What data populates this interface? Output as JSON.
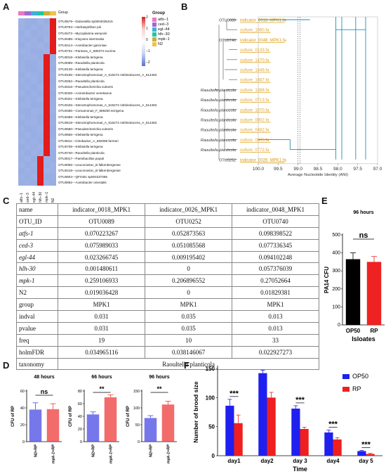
{
  "panels": {
    "a": "A",
    "b": "B",
    "c": "C",
    "d": "D",
    "e": "E",
    "f": "F"
  },
  "heatmap": {
    "legend_title": "Group",
    "groups": [
      {
        "name": "atfs−1",
        "color": "#ee77c0"
      },
      {
        "name": "ced−3",
        "color": "#9b6ad6"
      },
      {
        "name": "egl−44",
        "color": "#3fb1d6"
      },
      {
        "name": "hlh−30",
        "color": "#23c4a6"
      },
      {
        "name": "mpk−1",
        "color": "#c4b23a"
      },
      {
        "name": "N2",
        "color": "#f0c14b"
      }
    ],
    "group_bar_label": "Group",
    "scale_ticks": [
      "2",
      "1",
      "0",
      "−1",
      "−2"
    ],
    "columns": [
      "atfs−1",
      "ced−3",
      "egl−44",
      "hlh−30",
      "mpk−1",
      "N2"
    ],
    "rows": [
      "OTU0579---Dubosiella sp0004035415",
      "OTU0753---Herbaspirillum piri",
      "OTU0472---Mycoplasma wenyonii",
      "OTU0485---Kluyvera intermedia",
      "OTU0414---Acetobacter garciniae",
      "OTU0731---Pantoea_A_680372 eucrina",
      "OTU0018---Klebsiella terrigena",
      "OTU0089---Raoultella planticola",
      "OTU0139---Klebsiella terrigena",
      "OTU0165---Stenotrophomonas_A_615274 nitritireducens_A_614483",
      "OTU0252---Raoultella planticola",
      "OTU0316---Pseudescherichia vulneris",
      "OTU0328---Acinetobacter venetianus",
      "OTU0341---Klebsiella terrigena",
      "OTU0426---Stenotrophomonas_A_615274 nitritireducens_A_614483",
      "OTU0486---Comamonas_F_589250 terrigena",
      "OTU0488---Klebsiella terrigena",
      "OTU0519---Stenotrophomonas_A_615274 nitritireducens_A_614483",
      "OTU0560---Pseudescherichia vulneris",
      "OTU0566---Klebsiella terrigena",
      "OTU0611---Citrobacter_A_692098 farmeri",
      "OTU0739---Klebsiella terrigena",
      "OTU0740---Raoultella planticola",
      "OTU0017---Paenibacillus populi",
      "OTU0056---Leuconostoc_B falkenbergense",
      "OTU0418---Leuconostoc_B falkenbergense",
      "OTU0604---QFOI01 sp004337365",
      "OTU0692---Acetobacter orientalis"
    ],
    "values": [
      [
        -0.2,
        -0.5,
        -0.6,
        -0.2,
        -0.5,
        2.4
      ],
      [
        -0.3,
        -0.6,
        -0.3,
        -0.5,
        -0.2,
        2.4
      ],
      [
        -0.5,
        -0.2,
        -0.6,
        -0.4,
        -0.3,
        2.4
      ],
      [
        -0.4,
        -0.5,
        -0.3,
        -0.6,
        -0.2,
        2.4
      ],
      [
        -0.6,
        -0.3,
        -0.4,
        -0.2,
        -0.5,
        2.4
      ],
      [
        -0.3,
        -0.4,
        -0.6,
        -0.5,
        -0.2,
        2.4
      ],
      [
        -0.5,
        -0.4,
        -0.3,
        -0.5,
        2.4,
        -0.6
      ],
      [
        -0.4,
        -0.6,
        -0.5,
        -0.3,
        2.4,
        -0.4
      ],
      [
        -0.3,
        -0.5,
        -0.6,
        -0.4,
        2.4,
        -0.5
      ],
      [
        -0.6,
        -0.3,
        -0.4,
        -0.5,
        2.4,
        -0.3
      ],
      [
        -0.4,
        -0.5,
        -0.3,
        -0.6,
        2.4,
        -0.5
      ],
      [
        -0.5,
        -0.4,
        -0.6,
        -0.3,
        2.4,
        -0.4
      ],
      [
        -0.3,
        -0.6,
        -0.4,
        -0.5,
        2.4,
        -0.6
      ],
      [
        -0.6,
        -0.4,
        -0.5,
        -0.3,
        2.4,
        -0.5
      ],
      [
        -0.4,
        -0.3,
        -0.6,
        -0.5,
        2.4,
        -0.4
      ],
      [
        -0.5,
        -0.6,
        -0.3,
        -0.4,
        2.4,
        -0.3
      ],
      [
        -0.3,
        -0.5,
        -0.4,
        -0.6,
        2.4,
        -0.5
      ],
      [
        -0.6,
        -0.4,
        -0.3,
        -0.5,
        2.4,
        -0.4
      ],
      [
        -0.4,
        -0.6,
        -0.5,
        -0.3,
        2.4,
        -0.6
      ],
      [
        -0.5,
        -0.3,
        -0.6,
        -0.4,
        2.4,
        -0.5
      ],
      [
        -0.3,
        -0.5,
        -0.4,
        -0.6,
        2.4,
        -0.3
      ],
      [
        -0.6,
        -0.4,
        -0.5,
        -0.3,
        2.4,
        -0.4
      ],
      [
        -0.4,
        -0.6,
        -0.3,
        -0.5,
        2.4,
        -0.5
      ],
      [
        -0.5,
        -0.3,
        -0.6,
        2.4,
        -0.4,
        -0.5
      ],
      [
        -0.3,
        -0.6,
        -0.4,
        2.4,
        -0.5,
        -0.3
      ],
      [
        -0.6,
        -0.4,
        -0.5,
        2.4,
        -0.3,
        -0.4
      ],
      [
        -0.4,
        -0.5,
        -0.3,
        2.4,
        -0.6,
        -0.5
      ],
      [
        -0.5,
        -0.4,
        -0.6,
        2.4,
        -0.3,
        -0.6
      ]
    ]
  },
  "tree": {
    "leaves": [
      {
        "label": "indicator_0018_MPK1.fa",
        "pre": "OTU0089",
        "style": "hl"
      },
      {
        "label": "culture_1060.fa",
        "pre": "",
        "style": "c"
      },
      {
        "label": "indicator_0048_MPK1.fa",
        "pre": "OTU0740",
        "style": "hl"
      },
      {
        "label": "culture_0133.fa",
        "pre": "",
        "style": "c"
      },
      {
        "label": "culture_1470.fa",
        "pre": "",
        "style": "c"
      },
      {
        "label": "culture_1449.fa",
        "pre": "",
        "style": "c"
      },
      {
        "label": "culture_1687.fa",
        "pre": "",
        "style": "c"
      },
      {
        "label": "culture_1388.fa",
        "pre": "Raoultella planticola",
        "style": "c"
      },
      {
        "label": "culture_0713.fa",
        "pre": "Raoultella planticola",
        "style": "c"
      },
      {
        "label": "culture_1070.fa",
        "pre": "Raoultella planticola",
        "style": "c"
      },
      {
        "label": "culture_0802.fa",
        "pre": "Raoultella planticola",
        "style": "c"
      },
      {
        "label": "culture_0482.fa",
        "pre": "Raoultella planticola",
        "style": "c"
      },
      {
        "label": "culture_0805.fa",
        "pre": "Raoultella planticola",
        "style": "c"
      },
      {
        "label": "culture_0772.fa",
        "pre": "Raoultella planticola",
        "style": "c"
      },
      {
        "label": "indicator_0026_MPK1.fa",
        "pre": "OTU0252",
        "style": "hl"
      }
    ],
    "axis_ticks": [
      "100.0",
      "99.5",
      "99.0",
      "98.5",
      "98.0",
      "97.5",
      "97.0"
    ],
    "axis_label": "Average Nucleotide Identity (ANI)"
  },
  "table": {
    "rows": [
      {
        "c": [
          "name",
          "indicator_0018_MPK1",
          "indicator_0026_MPK1",
          "indicator_0048_MPK1"
        ],
        "it": false
      },
      {
        "c": [
          "OTU_ID",
          "OTU0089",
          "OTU0252",
          "OTU0740"
        ],
        "it": false
      },
      {
        "c": [
          "atfs-1",
          "0.070223267",
          "0.052873563",
          "0.098398522"
        ],
        "it": true
      },
      {
        "c": [
          "ced-3",
          "0.075989033",
          "0.051085568",
          "0.077336345"
        ],
        "it": true
      },
      {
        "c": [
          "egl-44",
          "0.023266745",
          "0.009195402",
          "0.094102248"
        ],
        "it": true
      },
      {
        "c": [
          "hlh-30",
          "0.001480611",
          "0",
          "0.057376039"
        ],
        "it": true
      },
      {
        "c": [
          "mpk-1",
          "0.259106933",
          "0.206896552",
          "0.27052664"
        ],
        "it": true
      },
      {
        "c": [
          "N2",
          "0.019036428",
          "0",
          "0.01829381"
        ],
        "it": false
      },
      {
        "c": [
          "group",
          "MPK1",
          "MPK1",
          "MPK1"
        ],
        "it": false
      },
      {
        "c": [
          "indval",
          "0.031",
          "0.035",
          "0.013"
        ],
        "it": false
      },
      {
        "c": [
          "pvalue",
          "0.031",
          "0.035",
          "0.013"
        ],
        "it": false
      },
      {
        "c": [
          "freq",
          "19",
          "10",
          "33"
        ],
        "it": false
      },
      {
        "c": [
          "holmFDR",
          "0.034965116",
          "0.038146067",
          "0.022927273"
        ],
        "it": false
      }
    ],
    "taxonomy_label": "taxonomy",
    "taxonomy_value": "Raoultella planticola"
  },
  "chart_data": [
    {
      "id": "D1",
      "type": "bar",
      "title": "48 hours",
      "categories": [
        "N2+RP",
        "mpk-1+RP"
      ],
      "values": [
        38,
        38.5
      ],
      "errors": [
        8,
        6.5
      ],
      "ylabel": "CFU of RP",
      "ylim": [
        0,
        60
      ],
      "yticks": [
        0,
        20,
        40,
        60
      ],
      "colors": [
        "#4a4ae6",
        "#ee3b3b"
      ],
      "sig": "ns"
    },
    {
      "id": "D2",
      "type": "bar",
      "title": "66 hours",
      "categories": [
        "N2+RP",
        "mpk-1+RP"
      ],
      "values": [
        43,
        70
      ],
      "errors": [
        4,
        4
      ],
      "ylabel": "CFU of RP",
      "ylim": [
        0,
        80
      ],
      "yticks": [
        0,
        20,
        40,
        60,
        80
      ],
      "colors": [
        "#4a4ae6",
        "#ee3b3b"
      ],
      "sig": "**"
    },
    {
      "id": "D3",
      "type": "bar",
      "title": "96 hours",
      "categories": [
        "N2+RP",
        "mpk-1+RP"
      ],
      "values": [
        70,
        110
      ],
      "errors": [
        7,
        10
      ],
      "ylabel": "CFU of RP",
      "ylim": [
        0,
        150
      ],
      "yticks": [
        0,
        50,
        100,
        150
      ],
      "colors": [
        "#4a4ae6",
        "#ee3b3b"
      ],
      "sig": "**"
    },
    {
      "id": "E",
      "type": "bar",
      "title": "96 hours",
      "categories": [
        "OP50",
        "RP"
      ],
      "values": [
        365,
        350
      ],
      "errors": [
        35,
        30
      ],
      "ylabel": "PA14 CFU",
      "xlabel": "Isloates",
      "ylim": [
        0,
        500
      ],
      "yticks": [
        0,
        100,
        200,
        300,
        400,
        500
      ],
      "colors": [
        "#000000",
        "#ee2222"
      ],
      "sig": "ns"
    },
    {
      "id": "F",
      "type": "bar",
      "categories": [
        "day1",
        "day2",
        "day 3",
        "day4",
        "day 5"
      ],
      "series": [
        {
          "name": "OP50",
          "values": [
            86,
            142,
            81,
            40,
            8
          ],
          "errors": [
            11,
            5,
            5,
            4,
            1
          ],
          "color": "#1f1fef"
        },
        {
          "name": "RP",
          "values": [
            56,
            100,
            46,
            28,
            3
          ],
          "errors": [
            14,
            9,
            3,
            3,
            1
          ],
          "color": "#ef1f1f"
        }
      ],
      "ylabel": "Number of brood size",
      "xlabel": "Time",
      "ylim": [
        0,
        150
      ],
      "yticks": [
        0,
        50,
        100,
        150
      ],
      "sig": [
        "***",
        "",
        "***",
        "***",
        "***"
      ]
    }
  ]
}
